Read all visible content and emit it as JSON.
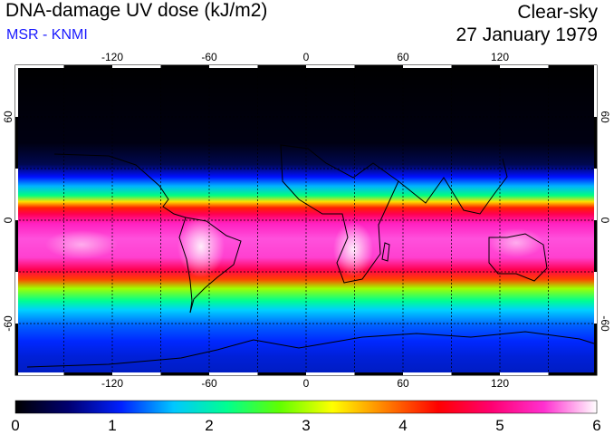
{
  "header": {
    "title": "DNA-damage UV dose (kJ/m2)",
    "source": "MSR - KNMI",
    "condition": "Clear-sky",
    "date": "27 January 1979"
  },
  "map": {
    "lon_ticks": [
      "-120",
      "-60",
      "0",
      "60",
      "120"
    ],
    "lon_values": [
      -120,
      -60,
      0,
      60,
      120
    ],
    "lat_ticks": [
      "60",
      "0",
      "-60"
    ],
    "lat_values": [
      60,
      0,
      -60
    ],
    "lon_range": [
      -180,
      180
    ],
    "lat_range": [
      -90,
      90
    ],
    "gridlines": "dashed"
  },
  "colorbar": {
    "labels": [
      "0",
      "1",
      "2",
      "3",
      "4",
      "5",
      "6"
    ],
    "min": 0,
    "max": 6,
    "colors": [
      "#000000",
      "#000070",
      "#0020ff",
      "#00c8ff",
      "#00ff90",
      "#60ff00",
      "#ffff00",
      "#ff8000",
      "#ff0000",
      "#ff0070",
      "#ff30d0",
      "#ffffff"
    ]
  },
  "colors": {
    "title": "#000000",
    "source": "#0000ff"
  }
}
